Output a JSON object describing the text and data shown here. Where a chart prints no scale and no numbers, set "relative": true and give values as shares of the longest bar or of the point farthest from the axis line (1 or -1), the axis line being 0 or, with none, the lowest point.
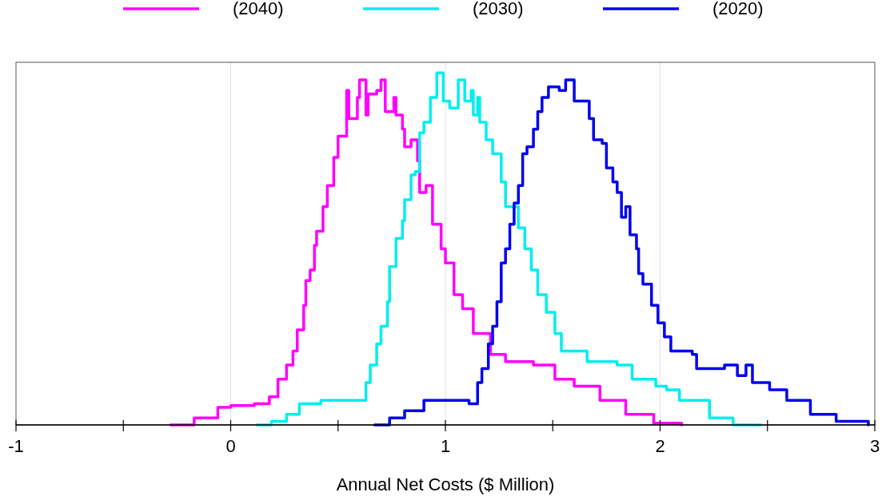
{
  "chart_data": {
    "type": "step",
    "relative": true,
    "xlabel": "Annual Net Costs ($ Million)",
    "xlim": [
      -1,
      3
    ],
    "xticks": [
      -1,
      {
        "value": -0.5,
        "label": null
      },
      0,
      {
        "value": 0.5,
        "label": null
      },
      1,
      {
        "value": 1.5,
        "label": null
      },
      2,
      {
        "value": 2.5,
        "label": null
      },
      3
    ],
    "grid": "x",
    "legend": "top",
    "line_style": "solid",
    "marker": "none",
    "series": [
      {
        "name": "(2040)",
        "color": "#ff00ff",
        "x": [
          -0.28,
          -0.17,
          -0.06,
          0.0,
          0.11,
          0.18,
          0.22,
          0.26,
          0.29,
          0.31,
          0.34,
          0.35,
          0.37,
          0.39,
          0.4,
          0.43,
          0.45,
          0.48,
          0.5,
          0.54,
          0.55,
          0.59,
          0.6,
          0.63,
          0.64,
          0.68,
          0.7,
          0.72,
          0.76,
          0.77,
          0.8,
          0.81,
          0.84,
          0.87,
          0.88,
          0.91,
          0.94,
          0.98,
          1.0,
          1.04,
          1.08,
          1.13,
          1.21,
          1.28,
          1.41,
          1.51,
          1.6,
          1.72,
          1.84,
          1.97,
          2.1
        ],
        "values": [
          0,
          0.02,
          0.05,
          0.055,
          0.06,
          0.08,
          0.13,
          0.17,
          0.21,
          0.27,
          0.34,
          0.41,
          0.44,
          0.51,
          0.55,
          0.62,
          0.68,
          0.76,
          0.82,
          0.95,
          0.87,
          0.93,
          0.98,
          0.88,
          0.94,
          0.95,
          0.98,
          0.89,
          0.93,
          0.88,
          0.84,
          0.79,
          0.81,
          0.75,
          0.66,
          0.68,
          0.57,
          0.5,
          0.46,
          0.37,
          0.33,
          0.26,
          0.2,
          0.18,
          0.17,
          0.13,
          0.11,
          0.07,
          0.03,
          0.005,
          0
        ]
      },
      {
        "name": "(2030)",
        "color": "#00eeee",
        "x": [
          0.12,
          0.19,
          0.26,
          0.32,
          0.42,
          0.53,
          0.6,
          0.63,
          0.65,
          0.68,
          0.7,
          0.73,
          0.74,
          0.77,
          0.8,
          0.81,
          0.84,
          0.86,
          0.88,
          0.9,
          0.93,
          0.96,
          0.99,
          1.02,
          1.06,
          1.09,
          1.12,
          1.13,
          1.15,
          1.16,
          1.19,
          1.22,
          1.25,
          1.26,
          1.28,
          1.34,
          1.37,
          1.4,
          1.43,
          1.47,
          1.51,
          1.54,
          1.66,
          1.8,
          1.87,
          1.98,
          2.03,
          2.09,
          2.23,
          2.34,
          2.47
        ],
        "values": [
          0,
          0.01,
          0.03,
          0.06,
          0.07,
          0.07,
          0.07,
          0.12,
          0.17,
          0.23,
          0.28,
          0.35,
          0.45,
          0.53,
          0.58,
          0.64,
          0.71,
          0.72,
          0.83,
          0.86,
          0.93,
          1.0,
          0.92,
          0.9,
          0.98,
          0.92,
          0.95,
          0.88,
          0.93,
          0.86,
          0.81,
          0.77,
          0.77,
          0.69,
          0.62,
          0.56,
          0.5,
          0.44,
          0.37,
          0.32,
          0.26,
          0.21,
          0.18,
          0.17,
          0.13,
          0.11,
          0.1,
          0.07,
          0.02,
          0,
          0
        ]
      },
      {
        "name": "(2020)",
        "color": "#0000ee",
        "x": [
          0.67,
          0.74,
          0.81,
          0.9,
          0.99,
          1.11,
          1.15,
          1.17,
          1.2,
          1.22,
          1.24,
          1.26,
          1.28,
          1.3,
          1.32,
          1.34,
          1.36,
          1.38,
          1.41,
          1.43,
          1.45,
          1.48,
          1.53,
          1.56,
          1.6,
          1.64,
          1.67,
          1.69,
          1.73,
          1.75,
          1.78,
          1.8,
          1.82,
          1.84,
          1.86,
          1.89,
          1.9,
          1.92,
          1.96,
          1.99,
          2.02,
          2.05,
          2.15,
          2.17,
          2.3,
          2.36,
          2.4,
          2.43,
          2.51,
          2.59,
          2.7,
          2.82,
          2.97
        ],
        "values": [
          0,
          0.02,
          0.04,
          0.07,
          0.07,
          0.06,
          0.12,
          0.16,
          0.23,
          0.28,
          0.35,
          0.46,
          0.5,
          0.57,
          0.63,
          0.68,
          0.77,
          0.79,
          0.84,
          0.89,
          0.93,
          0.96,
          0.95,
          0.98,
          0.92,
          0.92,
          0.87,
          0.81,
          0.8,
          0.73,
          0.69,
          0.66,
          0.59,
          0.62,
          0.54,
          0.5,
          0.43,
          0.4,
          0.34,
          0.29,
          0.25,
          0.21,
          0.2,
          0.16,
          0.17,
          0.14,
          0.17,
          0.12,
          0.1,
          0.07,
          0.03,
          0.01,
          0
        ]
      }
    ]
  }
}
